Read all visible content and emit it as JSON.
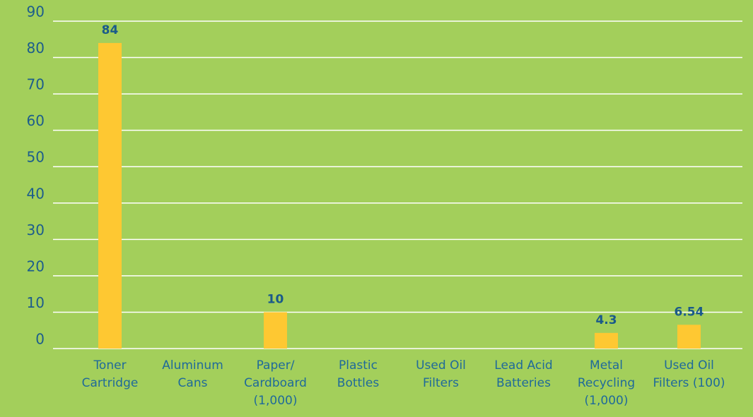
{
  "chart_data": {
    "type": "bar",
    "categories": [
      "Toner Cartridge",
      "Aluminum Cans",
      "Paper/ Cardboard (1,000)",
      "Plastic Bottles",
      "Used Oil Filters",
      "Lead Acid Batteries",
      "Metal Recycling (1,000)",
      "Used Oil Filters (100)"
    ],
    "values": [
      84,
      null,
      10,
      null,
      null,
      null,
      4.3,
      6.54
    ],
    "color": "#fec832",
    "ylim": [
      0,
      90
    ],
    "yticks": [
      0,
      10,
      20,
      30,
      40,
      50,
      60,
      70,
      80,
      90
    ],
    "grid": true
  }
}
